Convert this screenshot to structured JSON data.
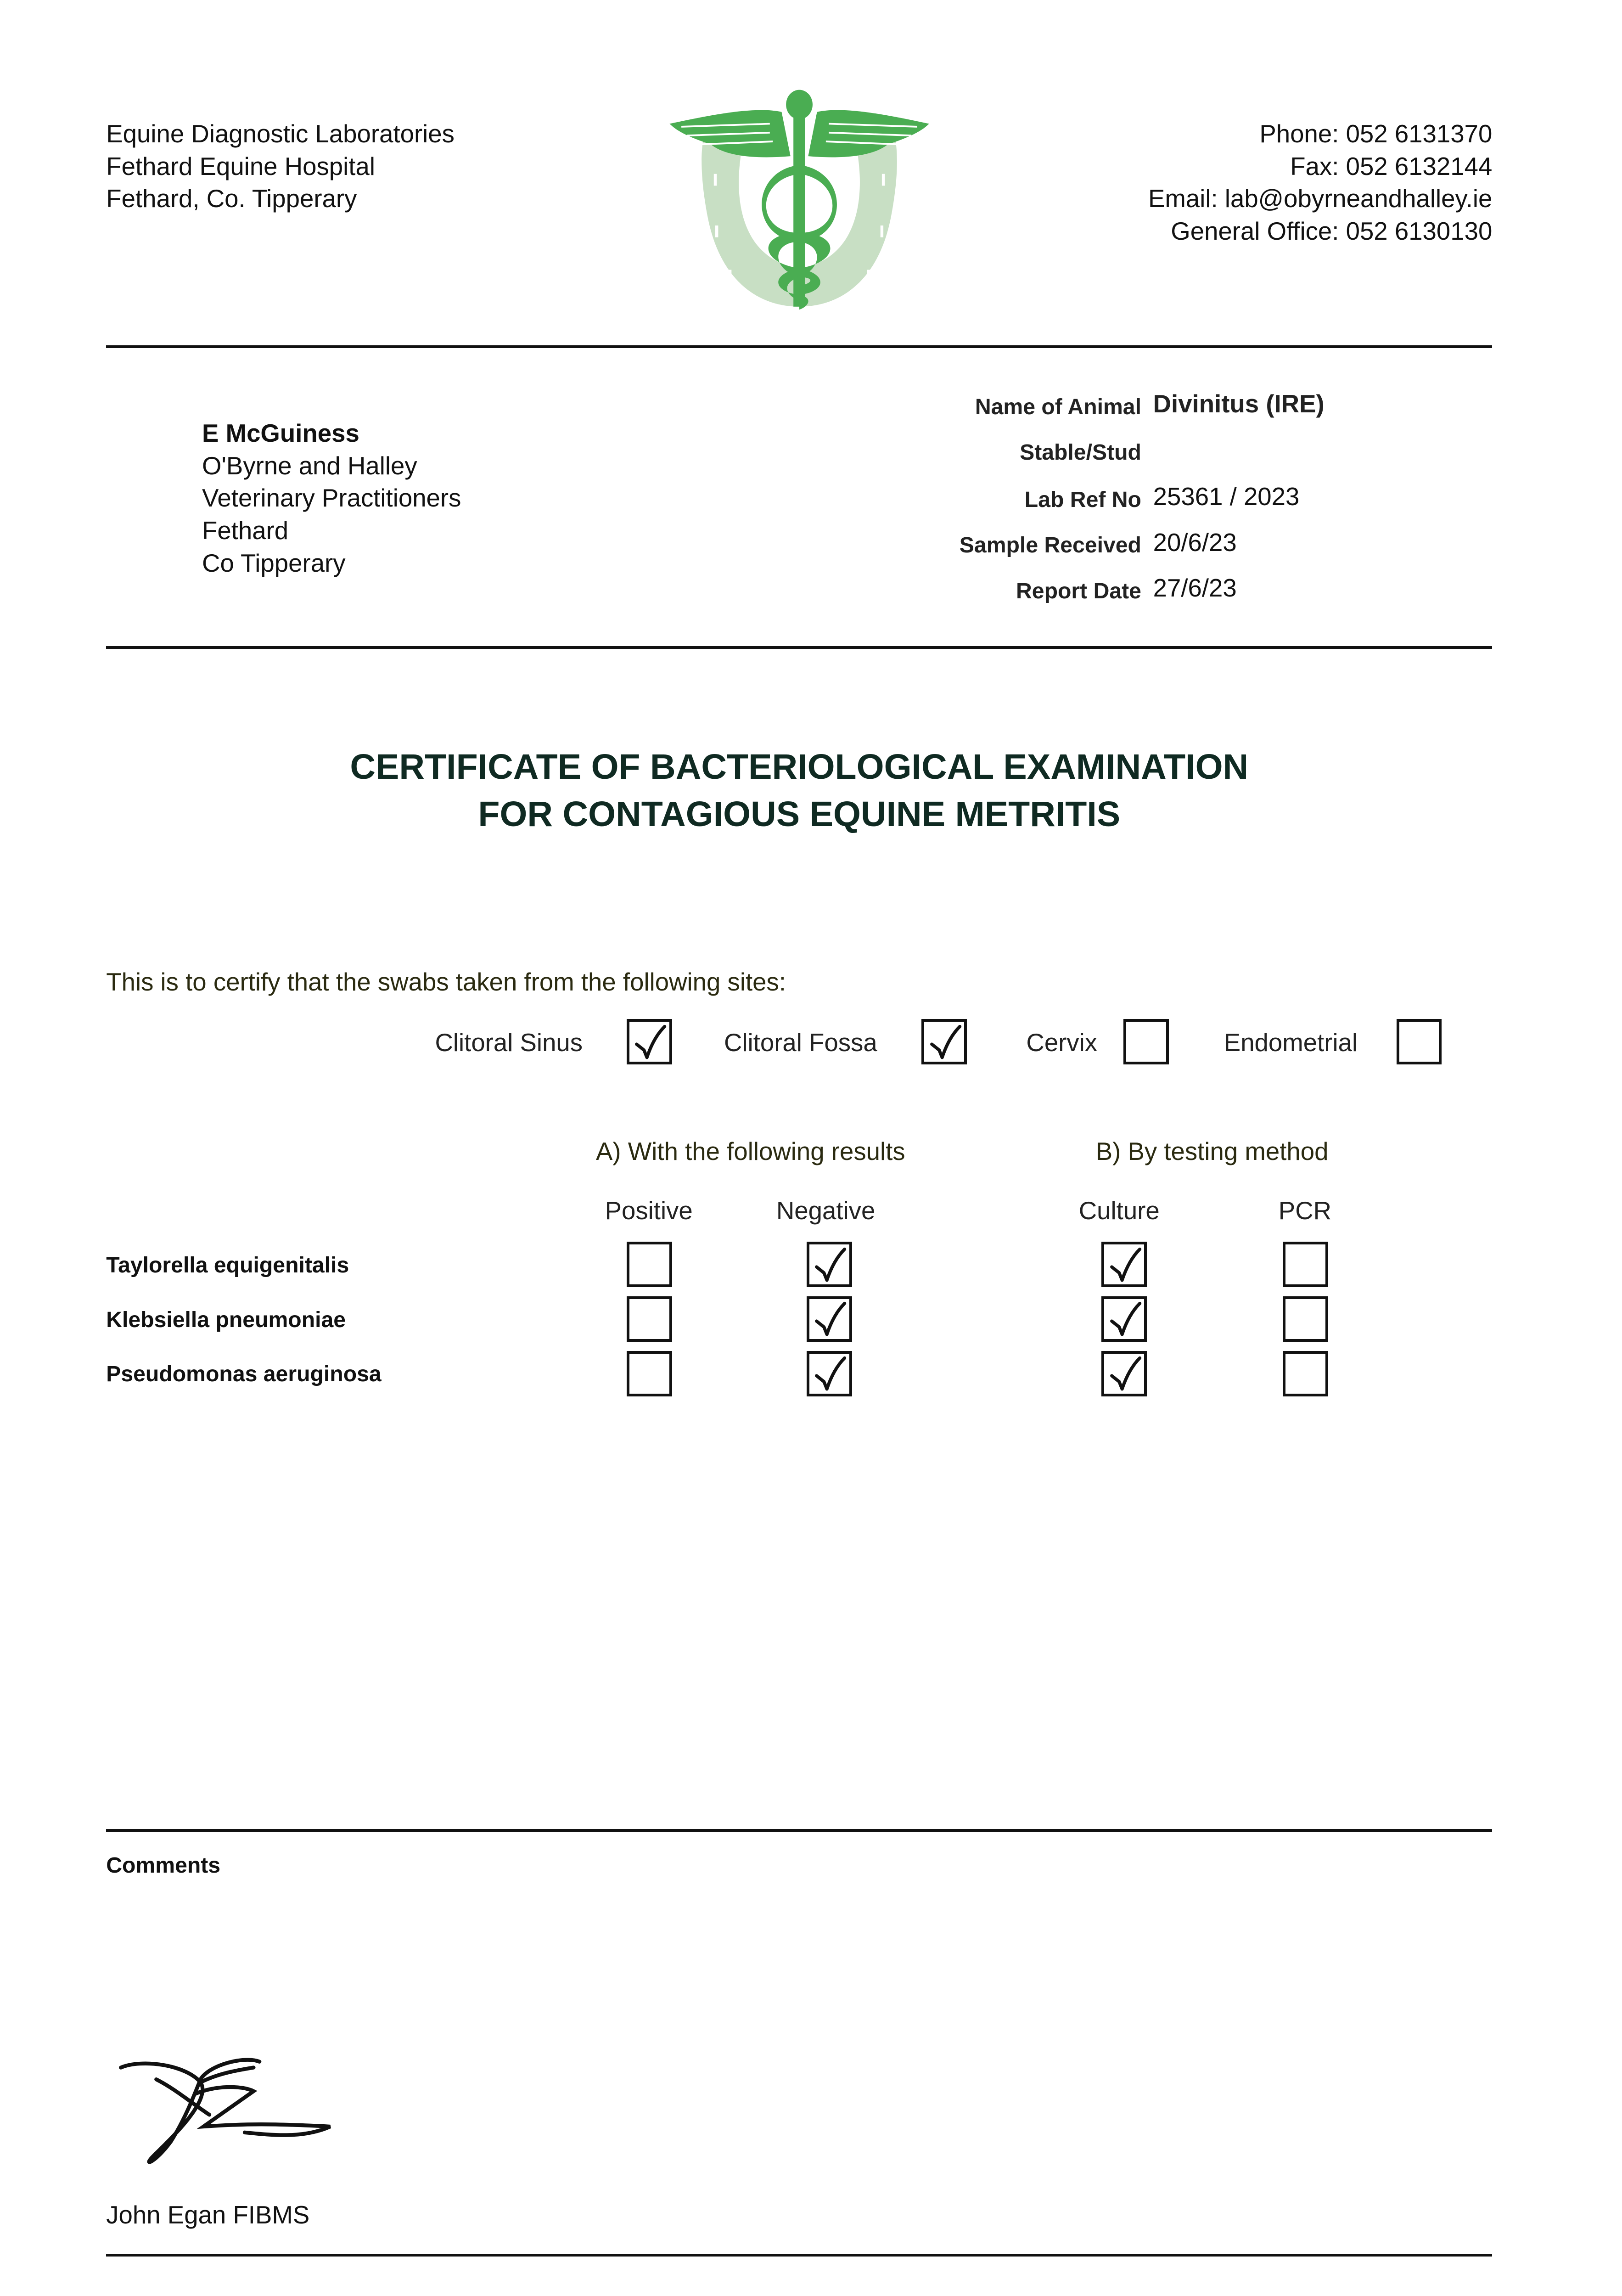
{
  "header": {
    "address": [
      "Equine Diagnostic Laboratories",
      "Fethard Equine Hospital",
      "Fethard, Co. Tipperary"
    ],
    "contact": [
      "Phone: 052 6131370",
      "Fax: 052 6132144",
      "Email: lab@obyrneandhalley.ie",
      "General Office: 052 6130130"
    ],
    "logo": "caduceus-horseshoe-logo",
    "colors": {
      "logo_green": "#4aad52",
      "horseshoe": "#c8dfc4",
      "title": "#0f2a22"
    }
  },
  "recipient": {
    "name": "E McGuiness",
    "lines": [
      "O'Byrne and Halley",
      "Veterinary Practitioners",
      "Fethard",
      "Co Tipperary"
    ]
  },
  "details": [
    {
      "label": "Name of Animal",
      "value": "Divinitus (IRE)"
    },
    {
      "label": "Stable/Stud",
      "value": ""
    },
    {
      "label": "Lab Ref No",
      "value": "25361 / 2023"
    },
    {
      "label": "Sample Received",
      "value": "20/6/23"
    },
    {
      "label": "Report Date",
      "value": "27/6/23"
    }
  ],
  "title": [
    "CERTIFICATE OF BACTERIOLOGICAL EXAMINATION",
    "FOR CONTAGIOUS EQUINE METRITIS"
  ],
  "certify_text": "This is to certify that the swabs taken from the following sites:",
  "sites": [
    {
      "label": "Clitoral Sinus",
      "checked": true
    },
    {
      "label": "Clitoral Fossa",
      "checked": true
    },
    {
      "label": "Cervix",
      "checked": false
    },
    {
      "label": "Endometrial",
      "checked": false
    }
  ],
  "results": {
    "section_a": "A) With the following results",
    "section_b": "B) By testing method",
    "columns": [
      "Positive",
      "Negative",
      "Culture",
      "PCR"
    ],
    "rows": [
      {
        "organism": "Taylorella equigenitalis",
        "checks": [
          false,
          true,
          true,
          false
        ]
      },
      {
        "organism": "Klebsiella pneumoniae",
        "checks": [
          false,
          true,
          true,
          false
        ]
      },
      {
        "organism": "Pseudomonas aeruginosa",
        "checks": [
          false,
          true,
          true,
          false
        ]
      }
    ]
  },
  "comments_label": "Comments",
  "signatory": "John Egan FIBMS"
}
